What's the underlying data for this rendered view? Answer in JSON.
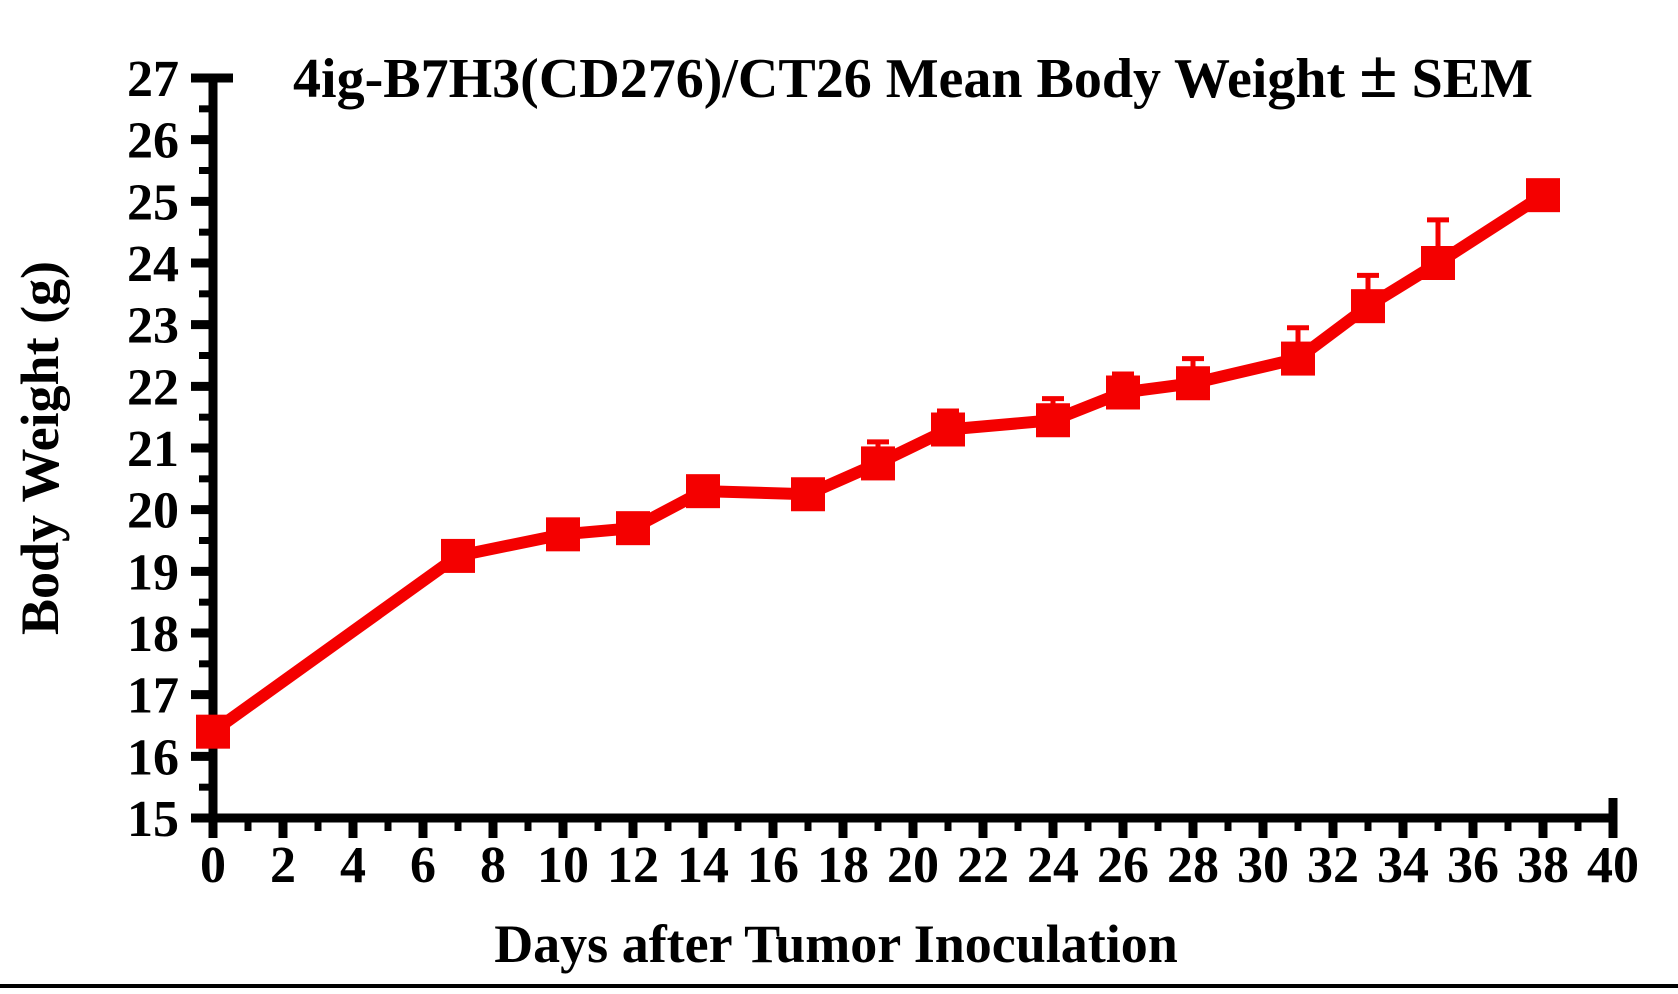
{
  "page": {
    "background_color": "#ffffff",
    "bottom_border_color": "#000000"
  },
  "chart_data": {
    "type": "line",
    "title": "4ig-B7H3(CD276)/CT26 Mean Body Weight ± SEM",
    "xlabel": "Days after Tumor Inoculation",
    "ylabel": "Body Weight (g)",
    "xlim": [
      0,
      40
    ],
    "ylim": [
      15,
      27
    ],
    "x_major_ticks": [
      0,
      2,
      4,
      6,
      8,
      10,
      12,
      14,
      16,
      18,
      20,
      22,
      24,
      26,
      28,
      30,
      32,
      34,
      36,
      38,
      40
    ],
    "x_minor_step": 1,
    "y_major_ticks": [
      15,
      16,
      17,
      18,
      19,
      20,
      21,
      22,
      23,
      24,
      25,
      26,
      27
    ],
    "y_minor_step": 0.5,
    "grid": false,
    "legend_position": "none",
    "axis_color": "#000000",
    "error_bar_style": "upper-only",
    "series": [
      {
        "name": "4ig-B7H3(CD276)/CT26 mean body weight",
        "color": "#f40000",
        "marker": "square",
        "x": [
          0,
          7,
          10,
          12,
          14,
          17,
          19,
          21,
          24,
          26,
          28,
          31,
          33,
          35,
          38
        ],
        "y": [
          16.4,
          19.25,
          19.6,
          19.7,
          20.3,
          20.25,
          20.75,
          21.3,
          21.45,
          21.9,
          22.05,
          22.45,
          23.3,
          24.0,
          25.1
        ],
        "sem_upper": [
          0,
          0,
          0,
          0,
          0,
          0,
          0.35,
          0.3,
          0.35,
          0.3,
          0.4,
          0.5,
          0.5,
          0.7,
          0
        ]
      }
    ]
  }
}
